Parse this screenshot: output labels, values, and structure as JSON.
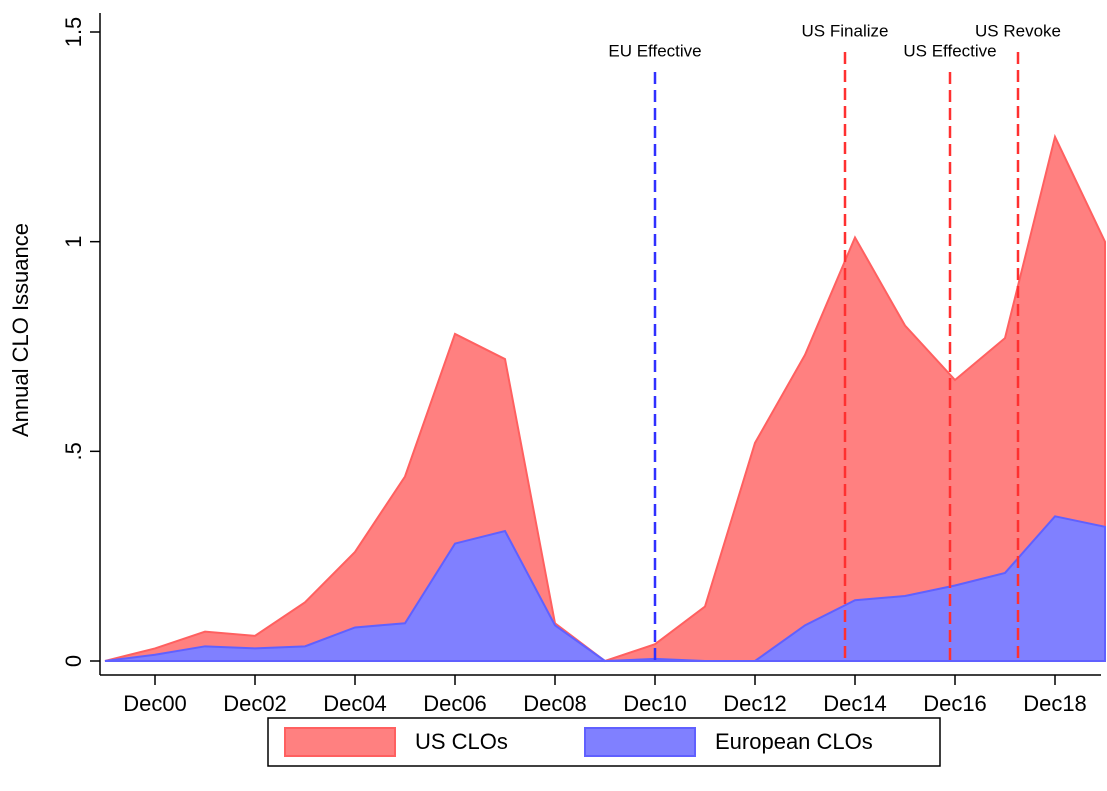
{
  "chart_data": {
    "type": "area",
    "y_label": "Annual CLO Issuance",
    "categories": [
      null,
      "Dec00",
      null,
      "Dec02",
      null,
      "Dec04",
      null,
      "Dec06",
      null,
      "Dec08",
      null,
      "Dec10",
      null,
      "Dec12",
      null,
      "Dec14",
      null,
      "Dec16",
      null,
      "Dec18",
      null
    ],
    "series": [
      {
        "name": "US CLOs",
        "color": "#ff8080",
        "stroke": "#ff6060",
        "values": [
          0,
          0.03,
          0.07,
          0.06,
          0.14,
          0.26,
          0.44,
          0.78,
          0.72,
          0.09,
          0,
          0.04,
          0.13,
          0.52,
          0.73,
          1.01,
          0.8,
          0.67,
          0.77,
          1.25,
          1.0
        ]
      },
      {
        "name": "European CLOs",
        "color": "#8080ff",
        "stroke": "#6060ff",
        "values": [
          0,
          0.015,
          0.035,
          0.03,
          0.035,
          0.08,
          0.09,
          0.28,
          0.31,
          0.085,
          0,
          0.005,
          0,
          0,
          0.085,
          0.145,
          0.155,
          0.18,
          0.21,
          0.345,
          0.32
        ]
      }
    ],
    "xlim": [
      -0.1,
      19.92
    ],
    "ylim": [
      0,
      1.5
    ],
    "yticks": [
      0,
      {
        "value": 0.5,
        "label": ".5"
      },
      1,
      1.5
    ],
    "events": [
      {
        "label": "EU Effective",
        "x": 11,
        "color": "#3030ff"
      },
      {
        "label": "US Finalize",
        "x": 14.8,
        "color": "#ff3030"
      },
      {
        "label": "US Effective",
        "x": 16.9,
        "color": "#ff3030"
      },
      {
        "label": "US Revoke",
        "x": 18.26,
        "color": "#ff3030"
      }
    ]
  }
}
